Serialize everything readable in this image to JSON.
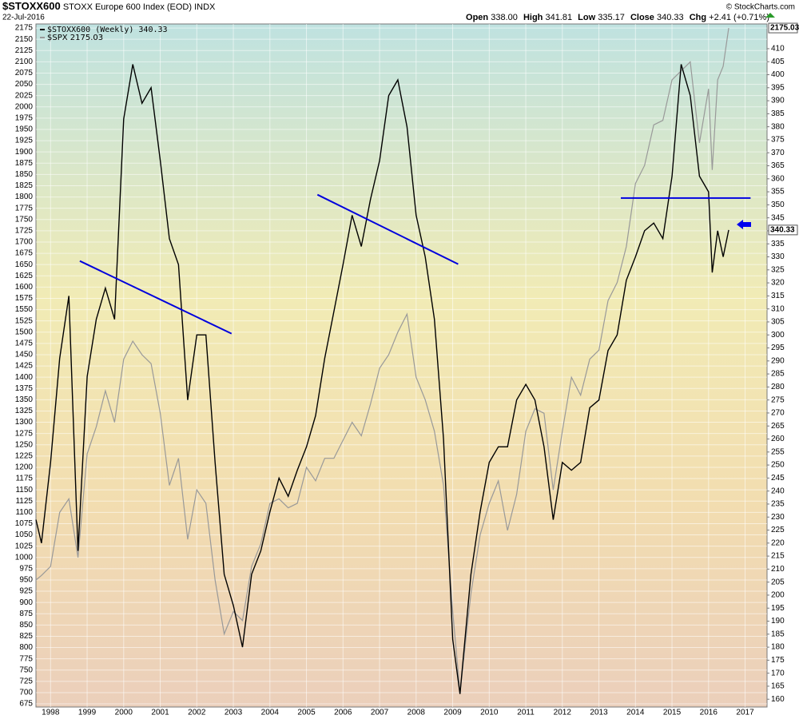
{
  "header": {
    "symbol": "$STOXX600",
    "name": "STOXX Europe 600 Index (EOD)",
    "exchange": "INDX",
    "date": "22-Jul-2016",
    "open_label": "Open",
    "open": "338.00",
    "high_label": "High",
    "high": "341.81",
    "low_label": "Low",
    "low": "335.17",
    "close_label": "Close",
    "close": "340.33",
    "chg_label": "Chg",
    "chg": "+2.41 (+0.71%)",
    "credit": "© StockCharts.com"
  },
  "chart_data": {
    "type": "line",
    "xlim": [
      1997.6,
      2017.6
    ],
    "xticks": [
      1998,
      1999,
      2000,
      2001,
      2002,
      2003,
      2004,
      2005,
      2006,
      2007,
      2008,
      2009,
      2010,
      2011,
      2012,
      2013,
      2014,
      2015,
      2016,
      2017
    ],
    "ylim": [
      668,
      2184
    ],
    "yticks": [
      675,
      700,
      725,
      750,
      775,
      800,
      825,
      850,
      875,
      900,
      925,
      950,
      975,
      1000,
      1025,
      1050,
      1075,
      1100,
      1125,
      1150,
      1175,
      1200,
      1225,
      1250,
      1275,
      1300,
      1325,
      1350,
      1375,
      1400,
      1425,
      1450,
      1475,
      1500,
      1525,
      1550,
      1575,
      1600,
      1625,
      1650,
      1675,
      1700,
      1725,
      1750,
      1775,
      1800,
      1825,
      1850,
      1875,
      1900,
      1925,
      1950,
      1975,
      2000,
      2025,
      2050,
      2075,
      2100,
      2125,
      2150,
      2175
    ],
    "y2lim": [
      157,
      419.5
    ],
    "y2ticks": [
      160,
      165,
      170,
      175,
      180,
      185,
      190,
      195,
      200,
      205,
      210,
      215,
      220,
      225,
      230,
      235,
      240,
      245,
      250,
      255,
      260,
      265,
      270,
      275,
      280,
      285,
      290,
      295,
      300,
      305,
      310,
      315,
      320,
      325,
      330,
      335,
      340,
      345,
      350,
      355,
      360,
      365,
      370,
      375,
      380,
      385,
      390,
      395,
      400,
      405,
      410
    ],
    "grid": true,
    "legend": "top-left",
    "x": [
      1997.6,
      1997.75,
      1998,
      1998.25,
      1998.5,
      1998.75,
      1999,
      1999.25,
      1999.5,
      1999.75,
      2000,
      2000.25,
      2000.5,
      2000.75,
      2001,
      2001.25,
      2001.5,
      2001.75,
      2002,
      2002.25,
      2002.5,
      2002.75,
      2003,
      2003.25,
      2003.5,
      2003.75,
      2004,
      2004.25,
      2004.5,
      2004.75,
      2005,
      2005.25,
      2005.5,
      2005.75,
      2006,
      2006.25,
      2006.5,
      2006.75,
      2007,
      2007.25,
      2007.5,
      2007.75,
      2008,
      2008.25,
      2008.5,
      2008.75,
      2009,
      2009.2,
      2009.5,
      2009.75,
      2010,
      2010.25,
      2010.5,
      2010.75,
      2011,
      2011.25,
      2011.5,
      2011.75,
      2012,
      2012.25,
      2012.5,
      2012.75,
      2013,
      2013.25,
      2013.5,
      2013.75,
      2014,
      2014.25,
      2014.5,
      2014.75,
      2015,
      2015.25,
      2015.5,
      2015.75,
      2016,
      2016.1,
      2016.25,
      2016.4,
      2016.55
    ],
    "series": [
      {
        "name": "$SPX",
        "color": "#999999",
        "axis": "y",
        "values": [
          950,
          960,
          980,
          1100,
          1130,
          1000,
          1230,
          1290,
          1370,
          1300,
          1440,
          1480,
          1450,
          1430,
          1320,
          1160,
          1220,
          1040,
          1150,
          1120,
          950,
          830,
          880,
          860,
          980,
          1030,
          1120,
          1130,
          1110,
          1120,
          1200,
          1170,
          1220,
          1220,
          1260,
          1300,
          1270,
          1340,
          1420,
          1450,
          1500,
          1540,
          1400,
          1350,
          1280,
          1160,
          880,
          700,
          920,
          1050,
          1120,
          1170,
          1060,
          1140,
          1280,
          1330,
          1320,
          1150,
          1280,
          1400,
          1360,
          1440,
          1460,
          1570,
          1610,
          1690,
          1830,
          1870,
          1960,
          1970,
          2060,
          2080,
          2100,
          1920,
          2040,
          1860,
          2060,
          2090,
          2175.03
        ]
      },
      {
        "name": "$STOXX600 (Weekly)",
        "color": "#000000",
        "axis": "y2",
        "values": [
          229,
          220,
          251,
          291,
          315,
          217,
          284,
          306,
          318,
          306,
          383,
          404,
          389,
          395,
          367,
          337,
          327,
          275,
          300,
          300,
          251,
          208,
          196,
          180,
          208,
          217,
          232,
          245,
          238,
          248,
          257,
          269,
          291,
          309,
          327,
          346,
          334,
          352,
          367,
          392,
          398,
          380,
          346,
          330,
          306,
          260,
          183,
          162,
          208,
          232,
          251,
          257,
          257,
          275,
          281,
          275,
          257,
          229,
          251,
          248,
          251,
          272,
          275,
          294,
          300,
          321,
          330,
          340,
          343,
          337,
          361,
          404,
          392,
          361,
          355,
          324,
          340,
          330,
          340.33
        ]
      }
    ],
    "trendlines": [
      {
        "color": "#0000dd",
        "axis": "y2",
        "x": [
          1998.8,
          2002.95
        ],
        "values": [
          328.4,
          300.5
        ]
      },
      {
        "color": "#0000dd",
        "axis": "y2",
        "x": [
          2005.3,
          2009.15
        ],
        "values": [
          353.9,
          327.2
        ]
      },
      {
        "color": "#0000dd",
        "axis": "y2",
        "x": [
          2013.6,
          2017.15
        ],
        "values": [
          352.6,
          352.6
        ]
      }
    ]
  }
}
